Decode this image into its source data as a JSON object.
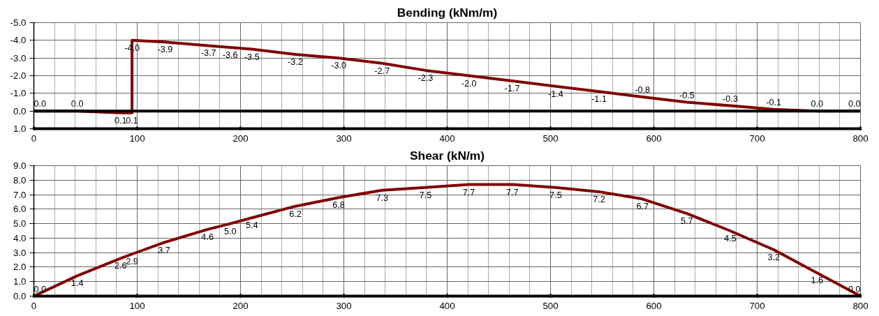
{
  "chart_data": [
    {
      "type": "line",
      "title": "Bending (kNm/m)",
      "xlim": [
        0,
        800
      ],
      "xticks": [
        0,
        100,
        200,
        300,
        400,
        500,
        600,
        700,
        800
      ],
      "ylim": [
        1,
        -5
      ],
      "yticks": [
        {
          "value": 1,
          "label": "1.0"
        },
        {
          "value": 0,
          "label": "0.0"
        },
        {
          "value": -1,
          "label": "-1.0"
        },
        {
          "value": -2,
          "label": "-2.0"
        },
        {
          "value": -3,
          "label": "-3.0"
        },
        {
          "value": -4,
          "label": "-4.0"
        },
        {
          "value": -5,
          "label": "-5.0"
        }
      ],
      "grid": true,
      "marker": "none",
      "line_style": "solid",
      "ref_lines": [
        {
          "axis": "y",
          "value": 0,
          "color": "#000000"
        }
      ],
      "series": [
        {
          "color": "#800000",
          "x": [
            0,
            42,
            84,
            95,
            95,
            127,
            169,
            190,
            211,
            253,
            295,
            337,
            379,
            421,
            463,
            505,
            547,
            589,
            632,
            674,
            716,
            758,
            800
          ],
          "values": [
            0.0,
            0.0,
            0.1,
            0.1,
            -4.0,
            -3.9,
            -3.7,
            -3.6,
            -3.5,
            -3.2,
            -3.0,
            -2.7,
            -2.3,
            -2.0,
            -1.7,
            -1.4,
            -1.1,
            -0.8,
            -0.5,
            -0.3,
            -0.1,
            0.0,
            0.0
          ],
          "value_labels": [
            "0.0",
            "0.0",
            "0.1",
            "0.1",
            "-4.0",
            "-3.9",
            "-3.7",
            "-3.6",
            "-3.5",
            "-3.2",
            "-3.0",
            "-2.7",
            "-2.3",
            "-2.0",
            "-1.7",
            "-1.4",
            "-1.1",
            "-0.8",
            "-0.5",
            "-0.3",
            "-0.1",
            "0.0",
            "0.0"
          ]
        }
      ]
    },
    {
      "type": "line",
      "title": "Shear (kN/m)",
      "xlim": [
        0,
        800
      ],
      "xticks": [
        0,
        100,
        200,
        300,
        400,
        500,
        600,
        700,
        800
      ],
      "ylim": [
        0,
        9
      ],
      "yticks": [
        {
          "value": 0,
          "label": "0.0"
        },
        {
          "value": 1,
          "label": "1.0"
        },
        {
          "value": 2,
          "label": "2.0"
        },
        {
          "value": 3,
          "label": "3.0"
        },
        {
          "value": 4,
          "label": "4.0"
        },
        {
          "value": 5,
          "label": "5.0"
        },
        {
          "value": 6,
          "label": "6.0"
        },
        {
          "value": 7,
          "label": "7.0"
        },
        {
          "value": 8,
          "label": "8.0"
        },
        {
          "value": 9,
          "label": "9.0"
        }
      ],
      "grid": true,
      "marker": "none",
      "line_style": "solid",
      "series": [
        {
          "color": "#800000",
          "x": [
            0,
            42,
            84,
            95,
            126,
            168,
            190,
            211,
            253,
            295,
            337,
            379,
            421,
            463,
            505,
            547,
            589,
            632,
            674,
            716,
            758,
            800
          ],
          "values": [
            0.0,
            1.4,
            2.6,
            2.9,
            3.7,
            4.6,
            5.0,
            5.4,
            6.2,
            6.8,
            7.3,
            7.5,
            7.7,
            7.7,
            7.5,
            7.2,
            6.7,
            5.7,
            4.5,
            3.2,
            1.6,
            0.0
          ],
          "value_labels": [
            "0.0",
            "1.4",
            "2.6",
            "2.9",
            "3.7",
            "4.6",
            "5.0",
            "5.4",
            "6.2",
            "6.8",
            "7.3",
            "7.5",
            "7.7",
            "7.7",
            "7.5",
            "7.2",
            "6.7",
            "5.7",
            "4.5",
            "3.2",
            "1.6",
            "0.0"
          ]
        }
      ]
    }
  ]
}
